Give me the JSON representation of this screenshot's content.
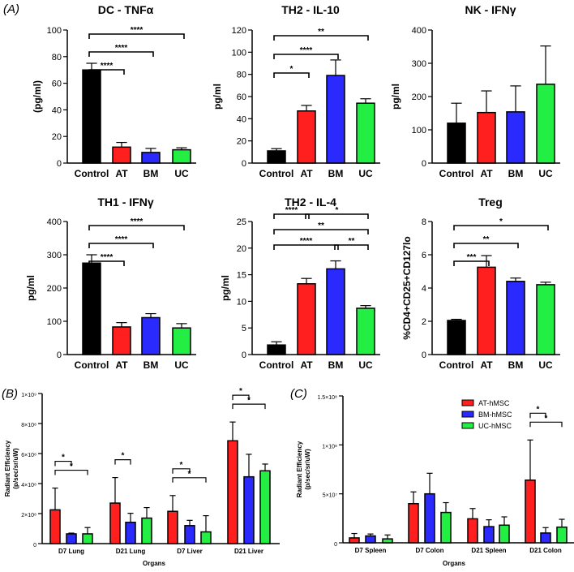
{
  "panel_labels": [
    "(A)",
    "(B)",
    "(C)"
  ],
  "colors": {
    "Control": "#000000",
    "AT": "#ff1f1f",
    "BM": "#2a2aff",
    "UC": "#22ee44"
  },
  "chart_data": [
    {
      "id": "dc-tnfa",
      "type": "bar",
      "title": "DC - TNFα",
      "ylabel": "(pg/ml)",
      "ylim": [
        0,
        100
      ],
      "yticks": [
        0,
        20,
        40,
        60,
        80,
        100
      ],
      "ytick_labels": [
        "0",
        "20",
        "40",
        "60",
        "80",
        "100"
      ],
      "categories": [
        "Control",
        "AT",
        "BM",
        "UC"
      ],
      "values": [
        70,
        12,
        8,
        10
      ],
      "errors": [
        5,
        3.5,
        3,
        1.5
      ],
      "significance": [
        {
          "a": 0,
          "b": 3,
          "level": 0,
          "label": "****"
        },
        {
          "a": 0,
          "b": 2,
          "level": 1,
          "label": "****"
        },
        {
          "a": 0,
          "b": 1,
          "level": 2,
          "label": "****"
        }
      ]
    },
    {
      "id": "th2-il10",
      "type": "bar",
      "title": "TH2 - IL-10",
      "ylabel": "pg/ml",
      "ylim": [
        0,
        120
      ],
      "yticks": [
        0,
        20,
        40,
        60,
        80,
        100,
        120
      ],
      "ytick_labels": [
        "0",
        "20",
        "40",
        "60",
        "80",
        "100",
        "120"
      ],
      "categories": [
        "Control",
        "AT",
        "BM",
        "UC"
      ],
      "values": [
        11,
        47,
        79,
        54
      ],
      "errors": [
        2,
        5,
        14,
        4
      ],
      "significance": [
        {
          "a": 0,
          "b": 3,
          "level": 0,
          "label": "**"
        },
        {
          "a": 0,
          "b": 2,
          "level": 1,
          "label": "****"
        },
        {
          "a": 0,
          "b": 1,
          "level": 2,
          "label": "*"
        }
      ]
    },
    {
      "id": "nk-ifng",
      "type": "bar",
      "title": "NK - IFNγ",
      "ylabel": "pg/ml",
      "ylim": [
        0,
        400
      ],
      "yticks": [
        0,
        100,
        200,
        300,
        400
      ],
      "ytick_labels": [
        "0",
        "100",
        "200",
        "300",
        "400"
      ],
      "categories": [
        "Control",
        "AT",
        "BM",
        "UC"
      ],
      "values": [
        120,
        152,
        154,
        237
      ],
      "errors": [
        60,
        65,
        78,
        115
      ],
      "significance": []
    },
    {
      "id": "th1-ifng",
      "type": "bar",
      "title": "TH1 - IFNγ",
      "ylabel": "pg/ml",
      "ylim": [
        0,
        400
      ],
      "yticks": [
        0,
        100,
        200,
        300,
        400
      ],
      "ytick_labels": [
        "0",
        "100",
        "200",
        "300",
        "400"
      ],
      "categories": [
        "Control",
        "AT",
        "BM",
        "UC"
      ],
      "values": [
        275,
        83,
        111,
        80
      ],
      "errors": [
        25,
        13,
        12,
        13
      ],
      "significance": [
        {
          "a": 0,
          "b": 3,
          "level": 0,
          "label": "****"
        },
        {
          "a": 0,
          "b": 2,
          "level": 1,
          "label": "****"
        },
        {
          "a": 0,
          "b": 1,
          "level": 2,
          "label": "****"
        }
      ]
    },
    {
      "id": "th2-il4",
      "type": "bar",
      "title": "TH2 - IL-4",
      "ylabel": "pg/ml",
      "ylim": [
        0,
        25
      ],
      "yticks": [
        0,
        5,
        10,
        15,
        20,
        25
      ],
      "ytick_labels": [
        "0",
        "5",
        "10",
        "15",
        "20",
        "25"
      ],
      "categories": [
        "Control",
        "AT",
        "BM",
        "UC"
      ],
      "values": [
        1.8,
        13.3,
        16.1,
        8.7
      ],
      "errors": [
        0.6,
        1.0,
        1.5,
        0.5
      ],
      "significance": [
        {
          "a": 0,
          "b": 1,
          "level": 0,
          "label": "****"
        },
        {
          "a": 1,
          "b": 3,
          "level": 0,
          "label": "*"
        },
        {
          "a": 0,
          "b": 3,
          "level": 1,
          "label": "**"
        },
        {
          "a": 0,
          "b": 2,
          "level": 2,
          "label": "****"
        },
        {
          "a": 2,
          "b": 3,
          "level": 2,
          "label": "**"
        }
      ]
    },
    {
      "id": "treg",
      "type": "bar",
      "title": "Treg",
      "ylabel": "%CD4+CD25+CD127lo",
      "ylim": [
        0,
        8
      ],
      "yticks": [
        0,
        2,
        4,
        6,
        8
      ],
      "ytick_labels": [
        "0",
        "2",
        "4",
        "6",
        "8"
      ],
      "categories": [
        "Control",
        "AT",
        "BM",
        "UC"
      ],
      "values": [
        2.05,
        5.25,
        4.4,
        4.2
      ],
      "errors": [
        0.07,
        0.7,
        0.2,
        0.15
      ],
      "significance": [
        {
          "a": 0,
          "b": 3,
          "level": 0,
          "label": "*"
        },
        {
          "a": 0,
          "b": 2,
          "level": 1,
          "label": "**"
        },
        {
          "a": 0,
          "b": 1,
          "level": 2,
          "label": "***"
        }
      ]
    },
    {
      "id": "panel-b",
      "type": "bar",
      "title": "",
      "ylabel": [
        "Radiant Efficiency",
        "(p/sec/sr/uW)"
      ],
      "xlabel": "Organs",
      "ylim": [
        0,
        1000000000
      ],
      "yticks": [
        0,
        200000000,
        400000000,
        600000000,
        800000000,
        1000000000
      ],
      "ytick_labels": [
        "0",
        "2×10⁸",
        "4×10⁸",
        "6×10⁸",
        "8×10⁸",
        "1×10⁹"
      ],
      "categories": [
        "D7 Lung",
        "D21 Lung",
        "D7 Liver",
        "D21 Liver"
      ],
      "series": [
        {
          "name": "AT-hMSC",
          "color_key": "AT",
          "values": [
            225000000,
            270000000,
            215000000,
            685000000
          ],
          "errors": [
            145000000,
            170000000,
            105000000,
            125000000
          ]
        },
        {
          "name": "BM-hMSC",
          "color_key": "BM",
          "values": [
            65000000,
            142000000,
            120000000,
            445000000
          ],
          "errors": [
            5000000,
            60000000,
            35000000,
            150000000
          ]
        },
        {
          "name": "UC-hMSC",
          "color_key": "UC",
          "values": [
            65000000,
            170000000,
            78000000,
            485000000
          ],
          "errors": [
            42000000,
            70000000,
            108000000,
            45000000
          ]
        }
      ],
      "significance": [
        {
          "group": 0,
          "a": 0,
          "b": 2,
          "level": 0,
          "label": "*"
        },
        {
          "group": 0,
          "a": 0,
          "b": 1,
          "level": 1,
          "label": "*"
        },
        {
          "group": 1,
          "a": 0,
          "b": 1,
          "level": 0,
          "label": "*"
        },
        {
          "group": 2,
          "a": 0,
          "b": 2,
          "level": 0,
          "label": "*"
        },
        {
          "group": 2,
          "a": 0,
          "b": 1,
          "level": 1,
          "label": "*"
        },
        {
          "group": 3,
          "a": 0,
          "b": 2,
          "level": 0,
          "label": "*"
        },
        {
          "group": 3,
          "a": 0,
          "b": 1,
          "level": 1,
          "label": "*"
        }
      ]
    },
    {
      "id": "panel-c",
      "type": "bar",
      "title": "",
      "ylabel": [
        "Radiant Efficiency",
        "(p/sec/sr/uW)"
      ],
      "xlabel": "Organs",
      "ylim": [
        0,
        150000000
      ],
      "yticks": [
        0,
        50000000,
        100000000,
        150000000
      ],
      "ytick_labels": [
        "0",
        "5×10⁷",
        "1×10⁸",
        "1.5×10⁸"
      ],
      "categories": [
        "D7 Spleen",
        "D7 Colon",
        "D21 Spleen",
        "D21 Colon"
      ],
      "legend": {
        "placement": "top-right",
        "entries": [
          "AT-hMSC",
          "BM-hMSC",
          "UC-hMSC"
        ]
      },
      "series": [
        {
          "name": "AT-hMSC",
          "color_key": "AT",
          "values": [
            5000000,
            40000000,
            24500000,
            64000000
          ],
          "errors": [
            4500000,
            12000000,
            10500000,
            41000000
          ]
        },
        {
          "name": "BM-hMSC",
          "color_key": "BM",
          "values": [
            7000000,
            50000000,
            16500000,
            10000000
          ],
          "errors": [
            2000000,
            21000000,
            7000000,
            5500000
          ]
        },
        {
          "name": "UC-hMSC",
          "color_key": "UC",
          "values": [
            4000000,
            31000000,
            18000000,
            16000000
          ],
          "errors": [
            4000000,
            10000000,
            8500000,
            8000000
          ]
        }
      ],
      "significance": [
        {
          "group": 3,
          "a": 0,
          "b": 2,
          "level": 0,
          "label": "*"
        },
        {
          "group": 3,
          "a": 0,
          "b": 1,
          "level": 1,
          "label": "*"
        }
      ]
    }
  ]
}
